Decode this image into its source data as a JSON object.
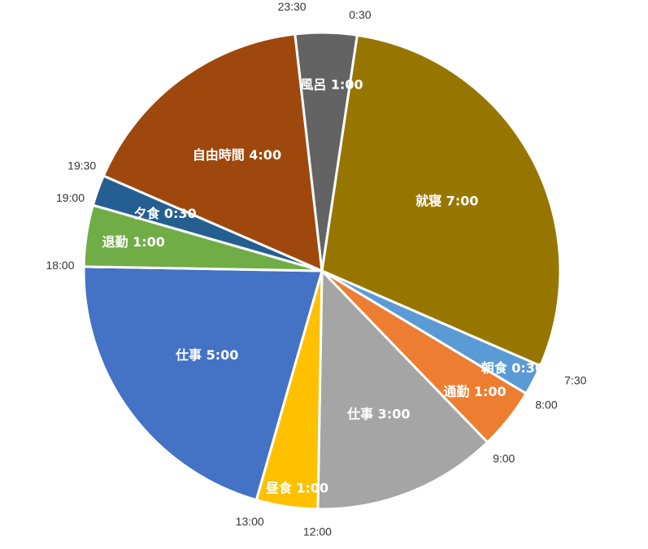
{
  "chart_data": {
    "type": "pie",
    "title": "",
    "unit": "hours",
    "start_angle_deg": 8.5,
    "direction": "clockwise",
    "slices": [
      {
        "label": "就寝 7:00",
        "value": 7.0,
        "color": "#977600"
      },
      {
        "label": "朝食 0:30",
        "value": 0.5,
        "color": "#5B9BD5"
      },
      {
        "label": "通勤 1:00",
        "value": 1.0,
        "color": "#ED7D31"
      },
      {
        "label": "仕事 3:00",
        "value": 3.0,
        "color": "#A5A5A5"
      },
      {
        "label": "昼食 1:00",
        "value": 1.0,
        "color": "#FFC000"
      },
      {
        "label": "仕事 5:00",
        "value": 5.0,
        "color": "#4472C4"
      },
      {
        "label": "退勤 1:00",
        "value": 1.0,
        "color": "#70AD47"
      },
      {
        "label": "夕食 0:30",
        "value": 0.5,
        "color": "#255E91"
      },
      {
        "label": "自由時間 4:00",
        "value": 4.0,
        "color": "#9E480E"
      },
      {
        "label": "風呂 1:00",
        "value": 1.0,
        "color": "#636363"
      }
    ],
    "boundary_times": [
      "0:30",
      "7:30",
      "8:00",
      "9:00",
      "12:00",
      "13:00",
      "18:00",
      "19:00",
      "19:30",
      "23:30"
    ]
  }
}
